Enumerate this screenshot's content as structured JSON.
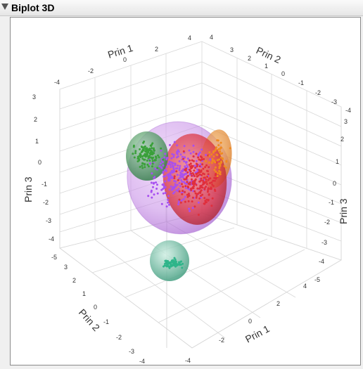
{
  "window": {
    "title": "Biplot 3D"
  },
  "axes": {
    "prin1": {
      "label": "Prin 1"
    },
    "prin2": {
      "label": "Prin 2"
    },
    "prin3": {
      "label": "Prin 3"
    }
  },
  "ticks": {
    "top_left_prin1": [
      "-4",
      "-2",
      "0",
      "2",
      "4"
    ],
    "top_right_prin2": [
      "-4",
      "-3",
      "-2",
      "-1",
      "0",
      "1",
      "2",
      "3",
      "4"
    ],
    "left_prin3": [
      "3",
      "2",
      "1",
      "0",
      "-1",
      "-2",
      "-3",
      "-4",
      "-5"
    ],
    "right_prin3": [
      "-4",
      "3",
      "2",
      "1",
      "0",
      "-1",
      "-2",
      "-3",
      "-4",
      "-5"
    ],
    "bottom_left_prin2": [
      "3",
      "2",
      "1",
      "0",
      "-1",
      "-2",
      "-3",
      "-4"
    ],
    "bottom_right_prin1": [
      "-4",
      "-2",
      "0",
      "2",
      "4"
    ]
  },
  "colors": {
    "purple": "#a74ff0",
    "red": "#e02f3c",
    "orange": "#f08a1f",
    "green_top": "#3aa03a",
    "teal": "#2fb58a"
  },
  "ellipsoids": [
    {
      "name": "purple-cluster-ellipsoid",
      "color": "#b06be0"
    },
    {
      "name": "red-cluster-ellipsoid",
      "color": "#d8323e"
    },
    {
      "name": "orange-cluster-ellipsoid",
      "color": "#e48a2c"
    },
    {
      "name": "green-cluster-ellipsoid",
      "color": "#3d8f55"
    },
    {
      "name": "teal-cluster-ellipsoid",
      "color": "#3aa383"
    }
  ]
}
